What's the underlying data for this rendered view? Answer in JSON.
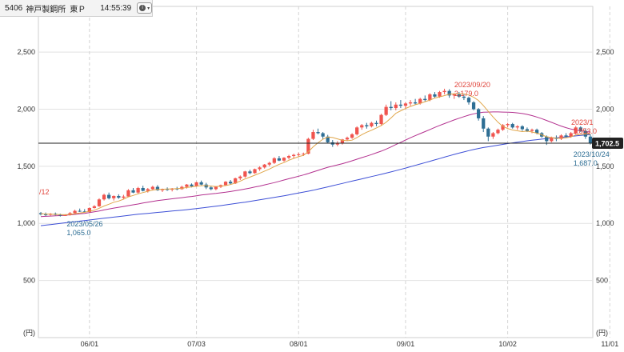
{
  "header": {
    "code": "5406",
    "name": "神戸製鋼所",
    "exchange": "東Ｐ",
    "time": "14:55:39",
    "info_icon": "info-icon",
    "menu_icon": "caret-down-icon"
  },
  "colors": {
    "up": "#f0554f",
    "down": "#2e6e94",
    "ma_short": "#e0a64a",
    "ma_mid": "#b3318f",
    "ma_long": "#3d4fd6",
    "grid": "#cfcfcf",
    "current_line": "#222222",
    "hi_label": "#e0433a",
    "lo_label": "#2e6e94"
  },
  "chart_data": {
    "type": "candlestick",
    "x_labels": [
      "06/01",
      "07/03",
      "08/01",
      "09/01",
      "10/02",
      "11/01"
    ],
    "x_label_index": [
      10,
      32,
      53,
      75,
      96,
      117
    ],
    "y_ticks": [
      500,
      1000,
      1500,
      2000,
      2500
    ],
    "y_tick_labels": [
      "500",
      "1,000",
      "1,500",
      "2,000",
      "2,500"
    ],
    "y_unit": "(円)",
    "ylim": [
      0,
      2900
    ],
    "current_price": 1702.5,
    "current_price_label": "1,702.5",
    "annotations": {
      "left_partial": "/12",
      "low1_date": "2023/05/26",
      "low1_value": "1,065.0",
      "high_date": "2023/09/20",
      "high_value": "2,179.0",
      "low2_date": "2023/10/24",
      "low2_value": "1,687.0",
      "right_date_partial": "2023/1",
      "right_value_partial": "1,853.0"
    },
    "high_index": 86,
    "low1_index": 5,
    "low2_index": 110,
    "candles": [
      [
        1090,
        1100,
        1070,
        1080
      ],
      [
        1080,
        1095,
        1065,
        1075
      ],
      [
        1075,
        1090,
        1068,
        1085
      ],
      [
        1085,
        1095,
        1070,
        1075
      ],
      [
        1075,
        1085,
        1060,
        1070
      ],
      [
        1070,
        1080,
        1065,
        1072
      ],
      [
        1072,
        1100,
        1068,
        1090
      ],
      [
        1090,
        1120,
        1080,
        1110
      ],
      [
        1110,
        1130,
        1100,
        1105
      ],
      [
        1105,
        1125,
        1095,
        1100
      ],
      [
        1100,
        1140,
        1095,
        1135
      ],
      [
        1135,
        1160,
        1130,
        1150
      ],
      [
        1150,
        1220,
        1145,
        1210
      ],
      [
        1210,
        1260,
        1200,
        1250
      ],
      [
        1250,
        1270,
        1210,
        1220
      ],
      [
        1220,
        1245,
        1200,
        1240
      ],
      [
        1240,
        1255,
        1215,
        1225
      ],
      [
        1225,
        1250,
        1210,
        1235
      ],
      [
        1235,
        1300,
        1230,
        1290
      ],
      [
        1290,
        1310,
        1265,
        1270
      ],
      [
        1270,
        1320,
        1260,
        1310
      ],
      [
        1310,
        1330,
        1280,
        1285
      ],
      [
        1285,
        1310,
        1270,
        1300
      ],
      [
        1300,
        1330,
        1290,
        1320
      ],
      [
        1320,
        1335,
        1285,
        1290
      ],
      [
        1290,
        1305,
        1275,
        1300
      ],
      [
        1300,
        1315,
        1285,
        1295
      ],
      [
        1295,
        1310,
        1280,
        1305
      ],
      [
        1305,
        1320,
        1290,
        1300
      ],
      [
        1300,
        1330,
        1295,
        1320
      ],
      [
        1320,
        1345,
        1305,
        1340
      ],
      [
        1340,
        1350,
        1315,
        1325
      ],
      [
        1325,
        1365,
        1320,
        1360
      ],
      [
        1360,
        1375,
        1335,
        1340
      ],
      [
        1340,
        1355,
        1300,
        1315
      ],
      [
        1315,
        1330,
        1290,
        1300
      ],
      [
        1300,
        1325,
        1290,
        1320
      ],
      [
        1320,
        1340,
        1310,
        1335
      ],
      [
        1335,
        1370,
        1330,
        1365
      ],
      [
        1365,
        1380,
        1340,
        1350
      ],
      [
        1350,
        1400,
        1345,
        1395
      ],
      [
        1395,
        1420,
        1380,
        1410
      ],
      [
        1410,
        1460,
        1400,
        1455
      ],
      [
        1455,
        1470,
        1430,
        1440
      ],
      [
        1440,
        1480,
        1435,
        1475
      ],
      [
        1475,
        1500,
        1460,
        1490
      ],
      [
        1490,
        1520,
        1480,
        1515
      ],
      [
        1515,
        1540,
        1500,
        1530
      ],
      [
        1530,
        1580,
        1520,
        1570
      ],
      [
        1570,
        1590,
        1545,
        1550
      ],
      [
        1550,
        1580,
        1540,
        1575
      ],
      [
        1575,
        1600,
        1560,
        1590
      ],
      [
        1590,
        1610,
        1570,
        1600
      ],
      [
        1600,
        1620,
        1585,
        1605
      ],
      [
        1605,
        1620,
        1590,
        1610
      ],
      [
        1610,
        1750,
        1605,
        1740
      ],
      [
        1740,
        1820,
        1730,
        1800
      ],
      [
        1800,
        1830,
        1780,
        1790
      ],
      [
        1790,
        1800,
        1740,
        1760
      ],
      [
        1760,
        1775,
        1700,
        1710
      ],
      [
        1710,
        1730,
        1670,
        1690
      ],
      [
        1690,
        1720,
        1675,
        1705
      ],
      [
        1705,
        1740,
        1690,
        1735
      ],
      [
        1735,
        1760,
        1725,
        1750
      ],
      [
        1750,
        1790,
        1740,
        1780
      ],
      [
        1780,
        1850,
        1770,
        1840
      ],
      [
        1840,
        1870,
        1820,
        1860
      ],
      [
        1860,
        1880,
        1830,
        1850
      ],
      [
        1850,
        1890,
        1840,
        1880
      ],
      [
        1880,
        1900,
        1850,
        1870
      ],
      [
        1870,
        1960,
        1860,
        1950
      ],
      [
        1950,
        2040,
        1940,
        2020
      ],
      [
        2020,
        2070,
        1990,
        2010
      ],
      [
        2010,
        2060,
        1990,
        2040
      ],
      [
        2040,
        2080,
        2010,
        2030
      ],
      [
        2030,
        2060,
        2000,
        2050
      ],
      [
        2050,
        2080,
        2030,
        2060
      ],
      [
        2060,
        2090,
        2040,
        2050
      ],
      [
        2050,
        2100,
        2040,
        2090
      ],
      [
        2090,
        2120,
        2070,
        2080
      ],
      [
        2080,
        2140,
        2070,
        2130
      ],
      [
        2130,
        2150,
        2100,
        2110
      ],
      [
        2110,
        2160,
        2100,
        2150
      ],
      [
        2150,
        2179,
        2130,
        2160
      ],
      [
        2160,
        2175,
        2100,
        2120
      ],
      [
        2120,
        2140,
        2090,
        2130
      ],
      [
        2130,
        2150,
        2100,
        2110
      ],
      [
        2110,
        2130,
        2080,
        2100
      ],
      [
        2100,
        2110,
        2040,
        2060
      ],
      [
        2060,
        2070,
        1990,
        2000
      ],
      [
        2000,
        2010,
        1900,
        1920
      ],
      [
        1920,
        1940,
        1800,
        1830
      ],
      [
        1830,
        1840,
        1720,
        1760
      ],
      [
        1760,
        1800,
        1740,
        1790
      ],
      [
        1790,
        1830,
        1780,
        1820
      ],
      [
        1820,
        1870,
        1810,
        1860
      ],
      [
        1860,
        1880,
        1840,
        1870
      ],
      [
        1870,
        1880,
        1830,
        1840
      ],
      [
        1840,
        1860,
        1820,
        1850
      ],
      [
        1850,
        1860,
        1810,
        1825
      ],
      [
        1825,
        1840,
        1800,
        1810
      ],
      [
        1810,
        1830,
        1790,
        1820
      ],
      [
        1820,
        1830,
        1780,
        1790
      ],
      [
        1790,
        1800,
        1750,
        1760
      ],
      [
        1760,
        1770,
        1687,
        1720
      ],
      [
        1720,
        1760,
        1710,
        1750
      ],
      [
        1750,
        1770,
        1720,
        1740
      ],
      [
        1740,
        1780,
        1730,
        1770
      ],
      [
        1770,
        1790,
        1750,
        1760
      ],
      [
        1760,
        1800,
        1750,
        1790
      ],
      [
        1790,
        1853,
        1780,
        1840
      ],
      [
        1840,
        1850,
        1800,
        1810
      ],
      [
        1810,
        1830,
        1740,
        1760
      ],
      [
        1760,
        1780,
        1690,
        1702.5
      ]
    ],
    "ma_short": [
      1085,
      1082,
      1080,
      1079,
      1077,
      1076,
      1079,
      1085,
      1091,
      1097,
      1106,
      1115,
      1133,
      1152,
      1168,
      1185,
      1196,
      1212,
      1232,
      1245,
      1259,
      1270,
      1281,
      1292,
      1297,
      1299,
      1301,
      1302,
      1304,
      1307,
      1314,
      1320,
      1326,
      1330,
      1331,
      1327,
      1323,
      1326,
      1331,
      1340,
      1353,
      1370,
      1390,
      1405,
      1422,
      1439,
      1458,
      1476,
      1497,
      1517,
      1533,
      1553,
      1569,
      1584,
      1596,
      1628,
      1671,
      1706,
      1737,
      1756,
      1752,
      1740,
      1728,
      1724,
      1729,
      1751,
      1777,
      1798,
      1816,
      1836,
      1857,
      1885,
      1923,
      1964,
      1986,
      2006,
      2024,
      2039,
      2050,
      2066,
      2080,
      2097,
      2108,
      2119,
      2131,
      2136,
      2136,
      2134,
      2124,
      2104,
      2076,
      2032,
      1981,
      1931,
      1886,
      1849,
      1831,
      1818,
      1811,
      1804,
      1808,
      1800,
      1790,
      1776,
      1758,
      1752,
      1746,
      1746,
      1749,
      1757,
      1775,
      1778,
      1785,
      1782
    ],
    "ma_mid": [
      1060,
      1062,
      1064,
      1066,
      1068,
      1071,
      1075,
      1079,
      1084,
      1088,
      1094,
      1101,
      1109,
      1118,
      1126,
      1134,
      1141,
      1148,
      1156,
      1163,
      1170,
      1178,
      1186,
      1193,
      1200,
      1205,
      1210,
      1215,
      1220,
      1225,
      1231,
      1236,
      1242,
      1248,
      1253,
      1258,
      1262,
      1268,
      1273,
      1279,
      1286,
      1293,
      1301,
      1309,
      1318,
      1327,
      1337,
      1347,
      1357,
      1368,
      1380,
      1391,
      1402,
      1413,
      1424,
      1437,
      1451,
      1464,
      1478,
      1491,
      1502,
      1512,
      1523,
      1535,
      1548,
      1562,
      1576,
      1589,
      1603,
      1618,
      1633,
      1650,
      1669,
      1690,
      1710,
      1730,
      1750,
      1768,
      1786,
      1804,
      1822,
      1840,
      1858,
      1874,
      1890,
      1906,
      1921,
      1935,
      1948,
      1959,
      1968,
      1973,
      1975,
      1976,
      1976,
      1975,
      1974,
      1972,
      1968,
      1962,
      1954,
      1944,
      1931,
      1917,
      1901,
      1885,
      1868,
      1852,
      1838,
      1826,
      1818,
      1811,
      1805,
      1799
    ],
    "ma_long": [
      980,
      985,
      990,
      995,
      1000,
      1005,
      1010,
      1015,
      1020,
      1025,
      1030,
      1035,
      1040,
      1045,
      1050,
      1055,
      1060,
      1065,
      1070,
      1075,
      1080,
      1084,
      1088,
      1092,
      1096,
      1100,
      1104,
      1108,
      1112,
      1116,
      1120,
      1125,
      1130,
      1135,
      1140,
      1145,
      1150,
      1156,
      1162,
      1168,
      1174,
      1180,
      1186,
      1193,
      1200,
      1207,
      1214,
      1221,
      1228,
      1235,
      1242,
      1250,
      1258,
      1266,
      1274,
      1282,
      1290,
      1300,
      1310,
      1320,
      1330,
      1340,
      1350,
      1360,
      1370,
      1380,
      1390,
      1400,
      1410,
      1420,
      1430,
      1440,
      1451,
      1462,
      1473,
      1484,
      1496,
      1508,
      1520,
      1532,
      1544,
      1556,
      1568,
      1580,
      1592,
      1604,
      1615,
      1626,
      1637,
      1647,
      1656,
      1664,
      1671,
      1678,
      1685,
      1692,
      1699,
      1705,
      1711,
      1717,
      1723,
      1728,
      1733,
      1738,
      1742,
      1746,
      1750,
      1754,
      1758,
      1762,
      1766,
      1770,
      1774,
      1778
    ]
  }
}
